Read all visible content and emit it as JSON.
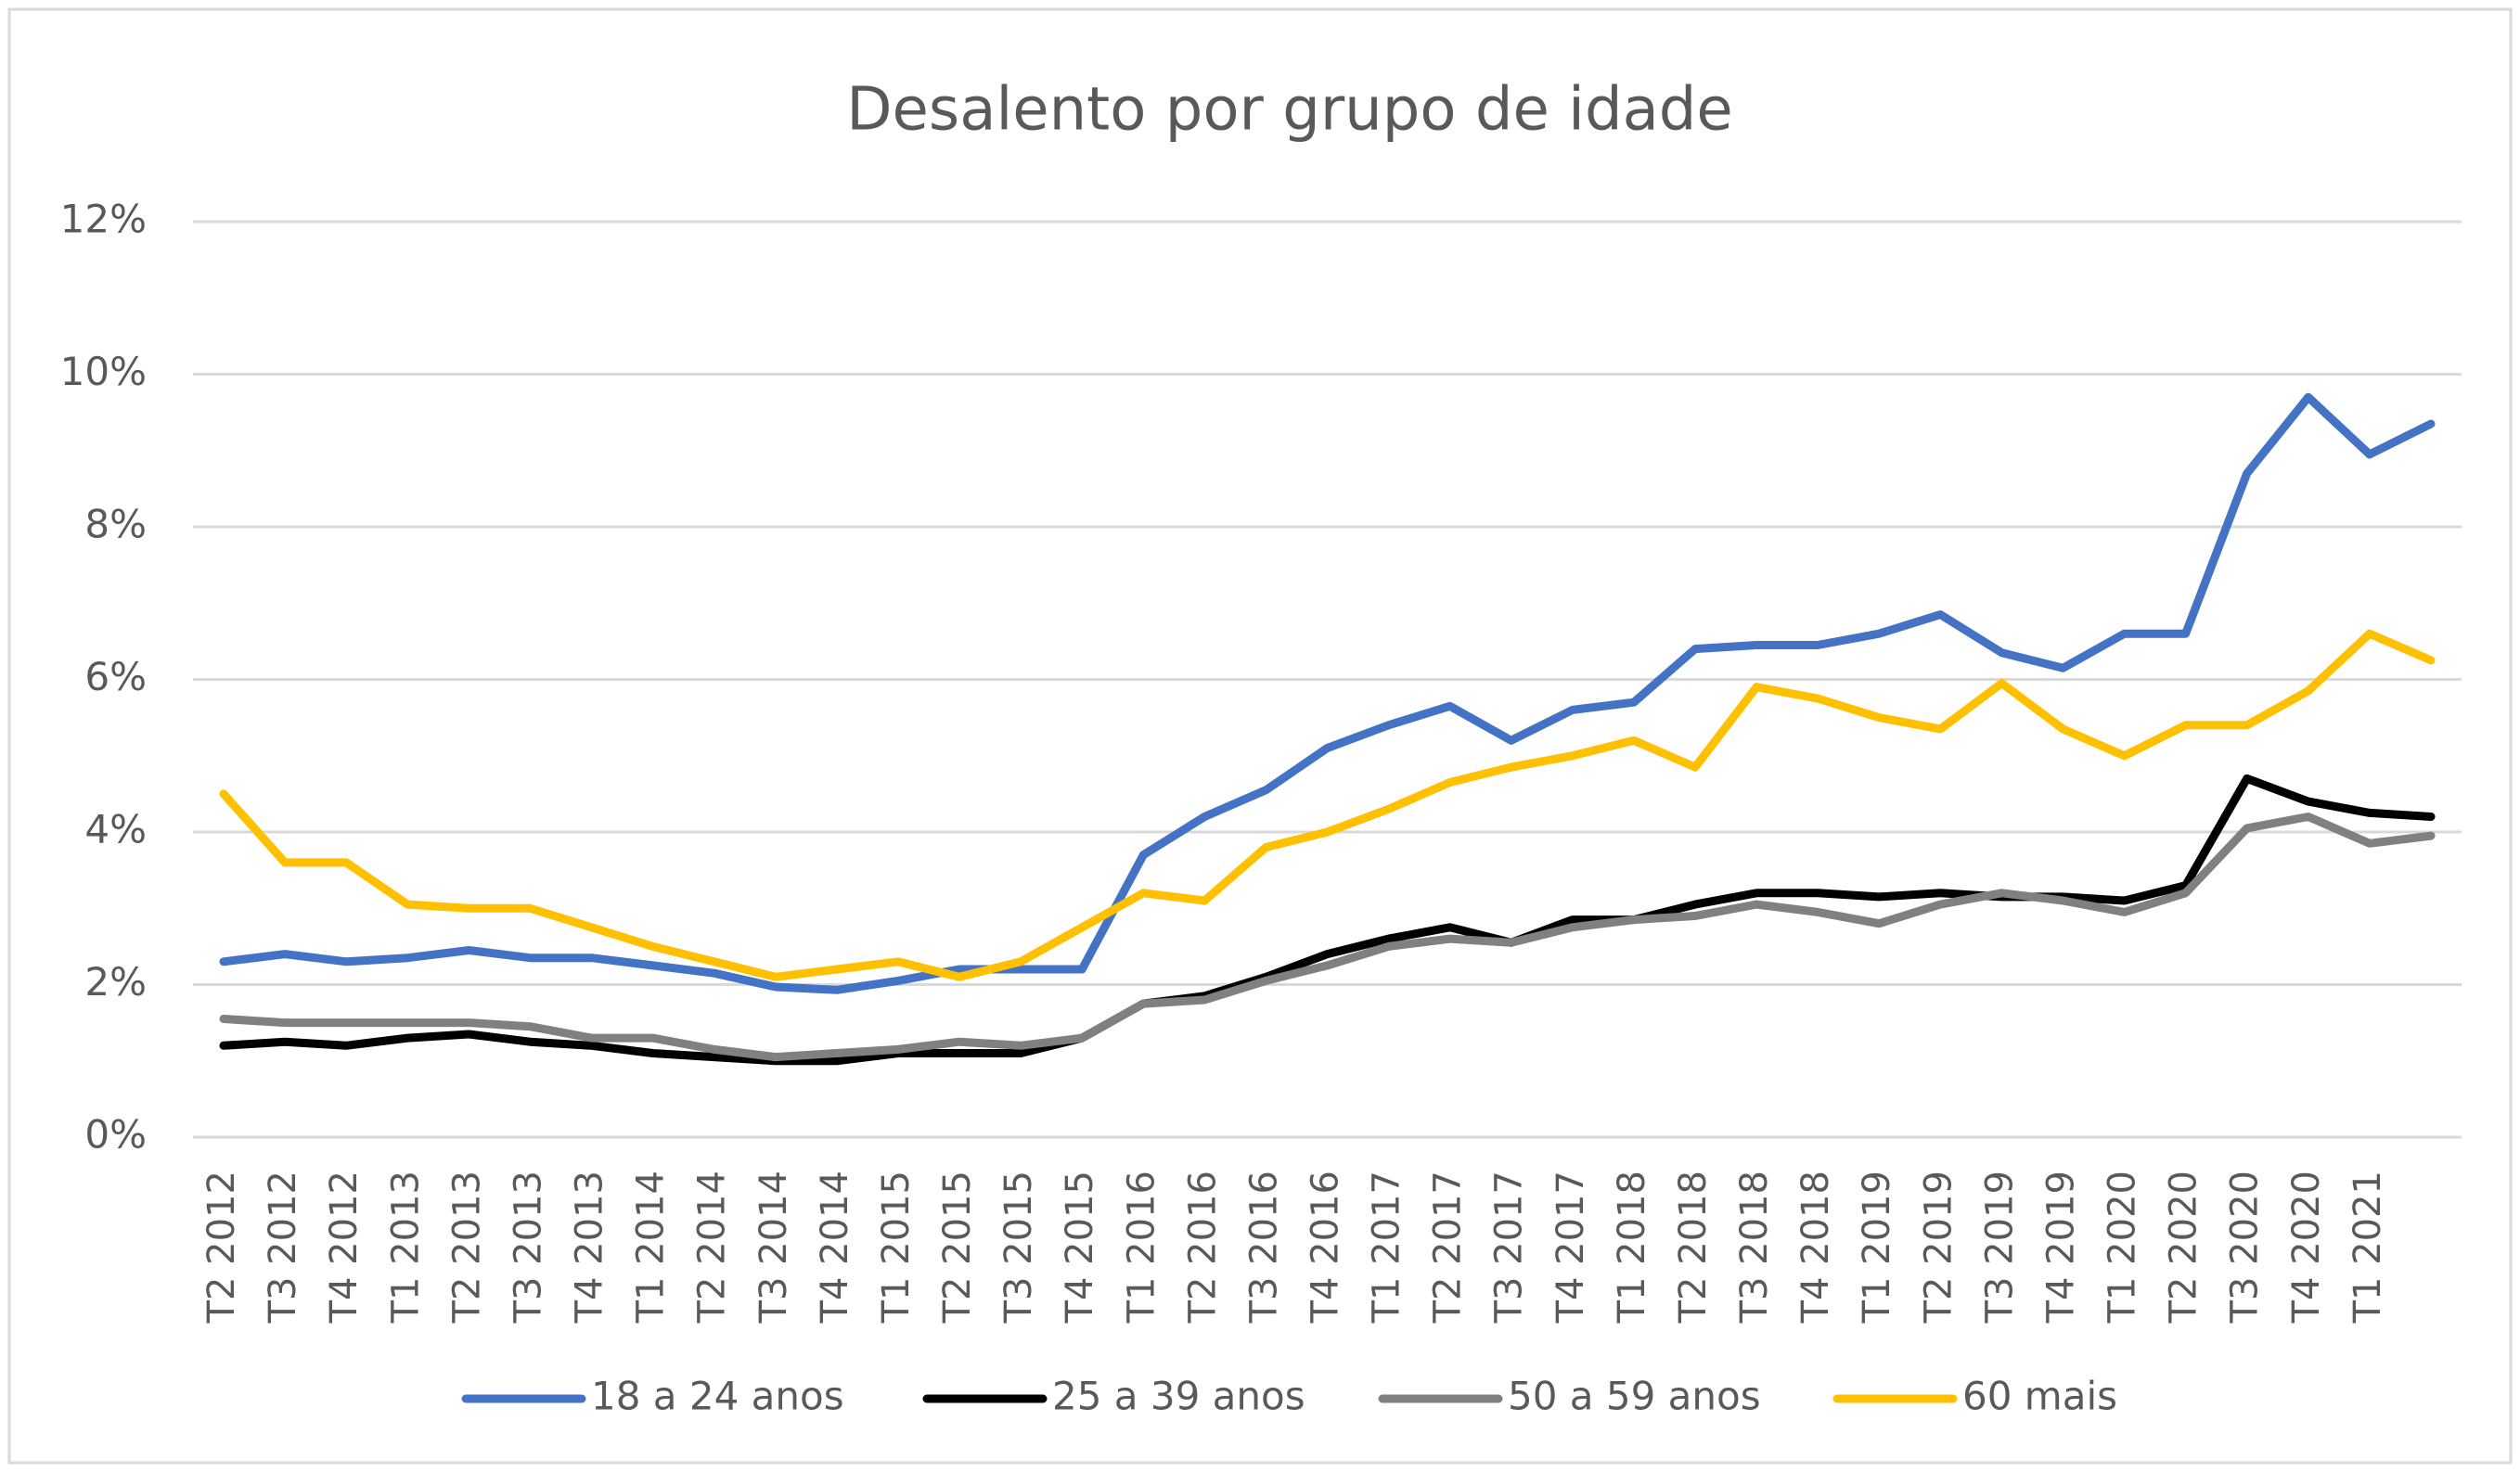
{
  "chart_data": {
    "type": "line",
    "title": "Desalento por grupo de idade",
    "categories": [
      "T2 2012",
      "T3 2012",
      "T4 2012",
      "T1 2013",
      "T2 2013",
      "T3 2013",
      "T4 2013",
      "T1 2014",
      "T2 2014",
      "T3 2014",
      "T4 2014",
      "T1 2015",
      "T2 2015",
      "T3 2015",
      "T4 2015",
      "T1 2016",
      "T2 2016",
      "T3 2016",
      "T4 2016",
      "T1 2017",
      "T2 2017",
      "T3 2017",
      "T4 2017",
      "T1 2018",
      "T2 2018",
      "T3 2018",
      "T4 2018",
      "T1 2019",
      "T2 2019",
      "T3 2019",
      "T4 2019",
      "T1 2020",
      "T2 2020",
      "T3 2020",
      "T4 2020",
      "T1 2021",
      null
    ],
    "series": [
      {
        "name": "18 a 24 anos",
        "color": "#4472c4",
        "values": [
          2.3,
          2.4,
          2.3,
          2.35,
          2.45,
          2.35,
          2.35,
          2.25,
          2.15,
          1.97,
          1.93,
          2.05,
          2.2,
          2.2,
          2.2,
          3.7,
          4.2,
          4.55,
          5.1,
          5.4,
          5.65,
          5.2,
          5.6,
          5.7,
          6.4,
          6.45,
          6.45,
          6.6,
          6.85,
          6.35,
          6.15,
          6.6,
          6.6,
          8.7,
          9.7,
          8.95,
          9.35
        ]
      },
      {
        "name": "25 a 39 anos",
        "color": "#000000",
        "values": [
          1.2,
          1.25,
          1.2,
          1.3,
          1.35,
          1.25,
          1.2,
          1.1,
          1.05,
          1.0,
          1.0,
          1.1,
          1.1,
          1.1,
          1.3,
          1.75,
          1.85,
          2.1,
          2.4,
          2.6,
          2.75,
          2.55,
          2.85,
          2.85,
          3.05,
          3.2,
          3.2,
          3.15,
          3.2,
          3.15,
          3.15,
          3.1,
          3.3,
          4.7,
          4.4,
          4.25,
          4.2
        ]
      },
      {
        "name": "50 a 59 anos",
        "color": "#808080",
        "values": [
          1.55,
          1.5,
          1.5,
          1.5,
          1.5,
          1.45,
          1.3,
          1.3,
          1.15,
          1.05,
          1.1,
          1.15,
          1.25,
          1.2,
          1.3,
          1.75,
          1.8,
          2.05,
          2.25,
          2.5,
          2.6,
          2.55,
          2.75,
          2.85,
          2.9,
          3.05,
          2.95,
          2.8,
          3.05,
          3.2,
          3.1,
          2.95,
          3.2,
          4.05,
          4.2,
          3.85,
          3.95
        ]
      },
      {
        "name": "60 mais",
        "color": "#ffc000",
        "values": [
          4.5,
          3.6,
          3.6,
          3.05,
          3.0,
          3.0,
          2.75,
          2.5,
          2.3,
          2.1,
          2.2,
          2.3,
          2.1,
          2.3,
          2.75,
          3.2,
          3.1,
          3.8,
          4.0,
          4.3,
          4.65,
          4.85,
          5.0,
          5.2,
          4.85,
          5.9,
          5.75,
          5.5,
          5.35,
          5.95,
          5.35,
          5.0,
          5.4,
          5.4,
          5.85,
          6.6,
          6.25
        ]
      }
    ],
    "ylim": [
      0,
      12
    ],
    "yticks": [
      {
        "value": 0,
        "label": "0%"
      },
      {
        "value": 2,
        "label": "2%"
      },
      {
        "value": 4,
        "label": "4%"
      },
      {
        "value": 6,
        "label": "6%"
      },
      {
        "value": 8,
        "label": "8%"
      },
      {
        "value": 10,
        "label": "10%"
      },
      {
        "value": 12,
        "label": "12%"
      }
    ],
    "grid": true,
    "legend": "bottom"
  }
}
